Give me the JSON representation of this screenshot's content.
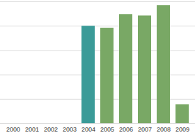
{
  "chart_data": {
    "type": "bar",
    "categories": [
      "2000",
      "2001",
      "2002",
      "2003",
      "2004",
      "2005",
      "2006",
      "2007",
      "2008",
      "2009"
    ],
    "values": [
      null,
      null,
      null,
      null,
      4.0,
      3.92,
      4.48,
      4.42,
      4.85,
      0.78
    ],
    "colors": [
      null,
      null,
      null,
      null,
      "#3b9b98",
      "#79a865",
      "#79a865",
      "#79a865",
      "#79a865",
      "#79a865"
    ],
    "ylim": [
      0,
      5
    ],
    "yticks": [
      0,
      1,
      2,
      3,
      4,
      5
    ],
    "grid": true,
    "tick_labels": "x"
  }
}
